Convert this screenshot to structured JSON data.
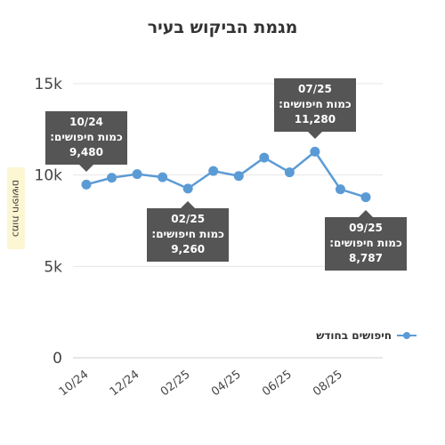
{
  "chart_data": {
    "type": "line",
    "title": "מגמת הביקוש בעיר",
    "ylabel": "כמות חיפושים",
    "xlabel": "",
    "ylim": [
      0,
      15000
    ],
    "yticks": [
      0,
      5000,
      10000,
      15000
    ],
    "ytick_labels": [
      "0",
      "5k",
      "10k",
      "15k"
    ],
    "grid": true,
    "legend_position": "right",
    "categories": [
      "10/24",
      "11/24",
      "12/24",
      "01/25",
      "02/25",
      "03/25",
      "04/25",
      "05/25",
      "06/25",
      "07/25",
      "08/25",
      "09/25"
    ],
    "xtick_labels": [
      "10/24",
      "12/24",
      "02/25",
      "04/25",
      "06/25",
      "08/25"
    ],
    "series": [
      {
        "name": "חיפושים בחודש",
        "color": "#5b9bd5",
        "values": [
          9480,
          9850,
          10050,
          9880,
          9260,
          10220,
          9950,
          10950,
          10150,
          11280,
          9220,
          8787
        ]
      }
    ],
    "annotations": [
      {
        "index": 0,
        "date": "10/24",
        "label": "כמות חיפושים:",
        "value": "9,480",
        "placement": "above"
      },
      {
        "index": 4,
        "date": "02/25",
        "label": "כמות חיפושים:",
        "value": "9,260",
        "placement": "below"
      },
      {
        "index": 9,
        "date": "07/25",
        "label": "כמות חיפושים:",
        "value": "11,280",
        "placement": "above"
      },
      {
        "index": 11,
        "date": "09/25",
        "label": "כמות חיפושים:",
        "value": "8,787",
        "placement": "below"
      }
    ]
  }
}
